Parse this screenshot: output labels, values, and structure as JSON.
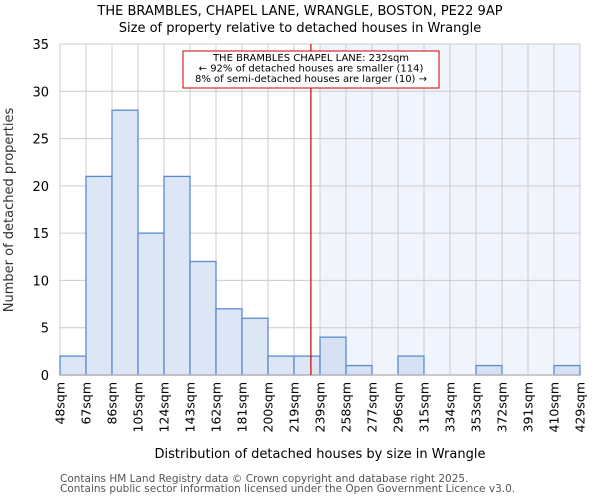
{
  "header": {
    "title": "THE BRAMBLES, CHAPEL LANE, WRANGLE, BOSTON, PE22 9AP",
    "subtitle": "Size of property relative to detached houses in Wrangle"
  },
  "annotation": {
    "line1": "THE BRAMBLES CHAPEL LANE: 232sqm",
    "line2": "← 92% of detached houses are smaller (114)",
    "line3": "8% of semi-detached houses are larger (10) →"
  },
  "footer": {
    "line1": "Contains HM Land Registry data © Crown copyright and database right 2025.",
    "line2": "Contains public sector information licensed under the Open Government Licence v3.0."
  },
  "colors": {
    "bar_fill": "#dce6f4",
    "bar_fill_highlight": "#d6e1f3",
    "bar_edge": "#5b8bd0",
    "marker_line": "#cc0000",
    "shade": "#f0f4fc",
    "grid": "#cccccc"
  },
  "chart_data": {
    "type": "bar",
    "title": "THE BRAMBLES, CHAPEL LANE, WRANGLE, BOSTON, PE22 9AP",
    "subtitle": "Size of property relative to detached houses in Wrangle",
    "xlabel": "Distribution of detached houses by size in Wrangle",
    "ylabel": "Number of detached properties",
    "categories": [
      "48sqm",
      "67sqm",
      "86sqm",
      "105sqm",
      "124sqm",
      "143sqm",
      "162sqm",
      "181sqm",
      "200sqm",
      "219sqm",
      "239sqm",
      "258sqm",
      "277sqm",
      "296sqm",
      "315sqm",
      "334sqm",
      "353sqm",
      "372sqm",
      "391sqm",
      "410sqm",
      "429sqm"
    ],
    "values": [
      2,
      21,
      28,
      15,
      21,
      12,
      7,
      6,
      2,
      2,
      4,
      1,
      0,
      2,
      0,
      0,
      1,
      0,
      0,
      1
    ],
    "ylim": [
      0,
      35
    ],
    "yticks": [
      0,
      5,
      10,
      15,
      20,
      25,
      30,
      35
    ],
    "grid": true,
    "marker": {
      "value_sqm": 232,
      "label": "THE BRAMBLES CHAPEL LANE: 232sqm"
    },
    "shaded_from": "239sqm"
  }
}
